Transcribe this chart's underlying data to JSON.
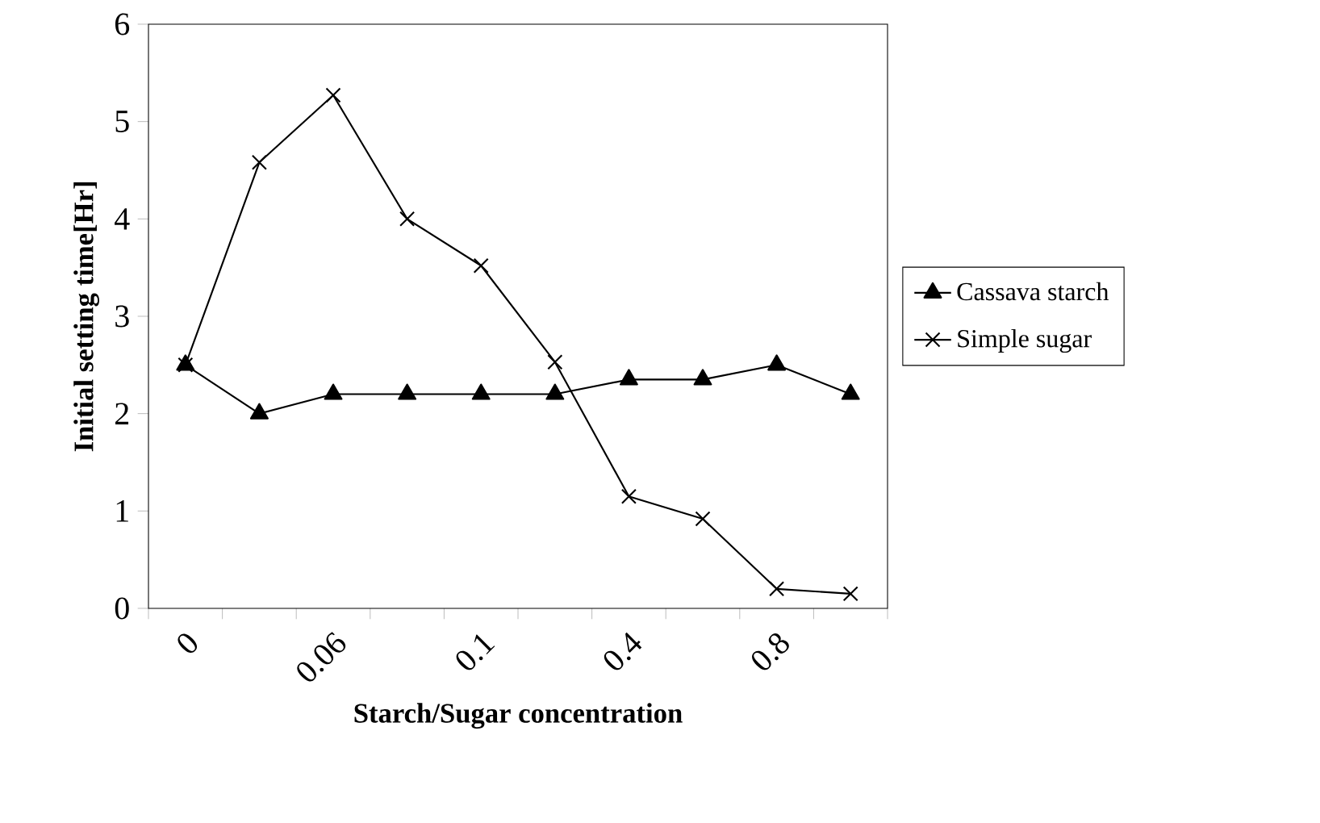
{
  "chart_data": {
    "type": "line",
    "xlabel": "Starch/Sugar concentration",
    "ylabel": "Initial setting time[Hr]",
    "categories": [
      "0",
      null,
      "0.06",
      null,
      "0.1",
      null,
      "0.4",
      null,
      "0.8",
      null
    ],
    "series": [
      {
        "name": "Cassava starch",
        "color": "#000000",
        "marker": "triangle",
        "values": [
          2.5,
          2.0,
          2.2,
          2.2,
          2.2,
          2.2,
          2.35,
          2.35,
          2.5,
          2.2
        ]
      },
      {
        "name": "Simple sugar",
        "color": "#000000",
        "marker": "cross",
        "values": [
          2.5,
          4.58,
          5.27,
          4.0,
          3.52,
          2.53,
          1.15,
          0.92,
          0.2,
          0.15
        ]
      }
    ],
    "ylim": [
      0,
      6
    ],
    "yticks": [
      0,
      1,
      2,
      3,
      4,
      5,
      6
    ],
    "grid": false,
    "legend": "right",
    "line_style": "solid"
  }
}
